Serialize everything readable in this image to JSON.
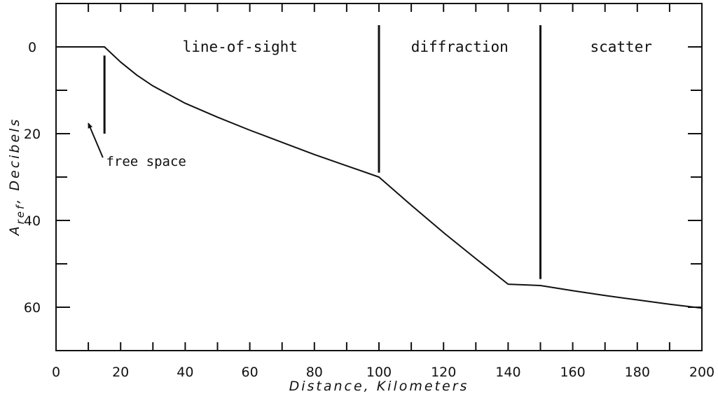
{
  "chart_data": {
    "type": "line",
    "xlabel": "Distance, Kilometers",
    "ylabel": {
      "base": "A",
      "sub": "ref",
      "rest": ", Decibels"
    },
    "xlim": [
      0,
      200
    ],
    "ylim": [
      -10,
      70
    ],
    "y_inverted": true,
    "x_ticks": [
      0,
      20,
      40,
      60,
      80,
      100,
      120,
      140,
      160,
      180,
      200
    ],
    "x_minor_ticks": [
      10,
      30,
      50,
      70,
      90,
      110,
      130,
      150,
      170,
      190
    ],
    "y_ticks": [
      0,
      20,
      40,
      60
    ],
    "y_minor_ticks": [
      -10,
      10,
      30,
      50,
      70
    ],
    "grid": false,
    "series": [
      {
        "x": [
          0,
          15,
          20,
          25,
          30,
          40,
          50,
          60,
          70,
          80,
          90,
          100,
          110,
          120,
          130,
          140,
          150,
          160,
          170,
          180,
          190,
          200
        ],
        "y": [
          0,
          0,
          3.5,
          6.5,
          9,
          13,
          16.2,
          19.2,
          22,
          24.8,
          27.4,
          30,
          36.5,
          42.8,
          48.8,
          54.7,
          55,
          56.2,
          57.3,
          58.3,
          59.3,
          60.2
        ]
      }
    ],
    "boundaries": [
      {
        "x": 15,
        "y_from": 2,
        "y_to": 20
      },
      {
        "x": 100,
        "y_from": -5,
        "y_to": 29
      },
      {
        "x": 150,
        "y_from": -5,
        "y_to": 53.5
      }
    ],
    "region_labels": [
      {
        "text": "line-of-sight",
        "x": 57,
        "y": 0
      },
      {
        "text": "diffraction",
        "x": 125,
        "y": 0
      },
      {
        "text": "scatter",
        "x": 175,
        "y": 0
      }
    ],
    "annotation": {
      "text": "free space",
      "text_x": 15.5,
      "text_y": 26.3,
      "arrow_from": [
        14.5,
        25.5
      ],
      "arrow_to": [
        10,
        17.6
      ]
    }
  }
}
